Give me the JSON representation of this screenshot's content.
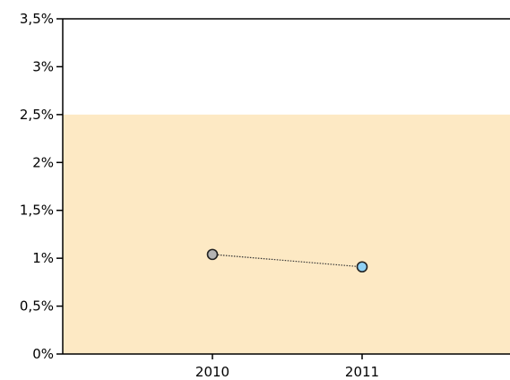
{
  "chart_data": {
    "type": "line",
    "x": [
      "2010",
      "2011"
    ],
    "series": [
      {
        "values": [
          1.04,
          0.91
        ],
        "point_colors": [
          "#b4b4b4",
          "#8fd1f5"
        ],
        "line_style": "dotted"
      }
    ],
    "y_ticks": [
      {
        "value": 0,
        "label": "0%"
      },
      {
        "value": 0.5,
        "label": "0,5%"
      },
      {
        "value": 1,
        "label": "1%"
      },
      {
        "value": 1.5,
        "label": "1,5%"
      },
      {
        "value": 2,
        "label": "2%"
      },
      {
        "value": 2.5,
        "label": "2,5%"
      },
      {
        "value": 3,
        "label": "3%"
      },
      {
        "value": 3.5,
        "label": "3,5%"
      }
    ],
    "ylim": [
      0,
      3.5
    ],
    "shaded_band": {
      "from": 0,
      "to": 2.5,
      "color": "#fde9c4"
    },
    "grid": false,
    "title": "",
    "xlabel": "",
    "ylabel": ""
  }
}
